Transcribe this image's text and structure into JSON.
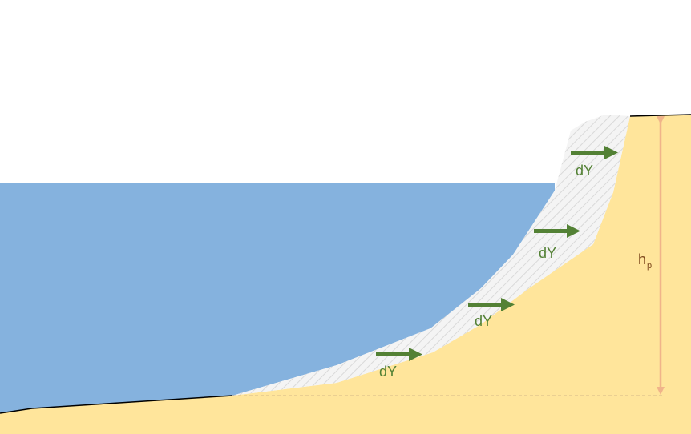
{
  "labels": {
    "displacement": [
      "dY",
      "dY",
      "dY",
      "dY"
    ],
    "height_main": "h",
    "height_sub": "p"
  },
  "colors": {
    "water": "#85b2de",
    "sand": "#ffe59b",
    "profile_line": "#000000",
    "eroded_fill": "#f2f2f2",
    "eroded_hatch": "#d9d9d9",
    "arrow": "#538135",
    "height_arrow": "#f0b48a",
    "label_green": "#538135",
    "label_brown": "#7f4a1e"
  }
}
